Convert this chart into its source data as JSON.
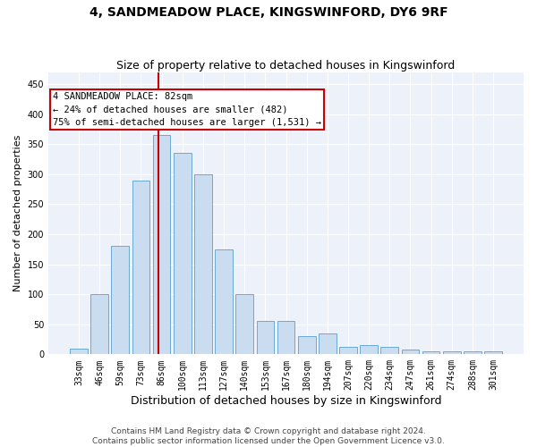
{
  "title": "4, SANDMEADOW PLACE, KINGSWINFORD, DY6 9RF",
  "subtitle": "Size of property relative to detached houses in Kingswinford",
  "xlabel": "Distribution of detached houses by size in Kingswinford",
  "ylabel": "Number of detached properties",
  "categories": [
    "33sqm",
    "46sqm",
    "59sqm",
    "73sqm",
    "86sqm",
    "100sqm",
    "113sqm",
    "127sqm",
    "140sqm",
    "153sqm",
    "167sqm",
    "180sqm",
    "194sqm",
    "207sqm",
    "220sqm",
    "234sqm",
    "247sqm",
    "261sqm",
    "274sqm",
    "288sqm",
    "301sqm"
  ],
  "values": [
    10,
    100,
    180,
    290,
    365,
    335,
    300,
    175,
    100,
    55,
    55,
    30,
    35,
    12,
    15,
    12,
    8,
    5,
    5,
    5,
    5
  ],
  "bar_color": "#c9dcf0",
  "bar_edge_color": "#6aaad4",
  "vline_color": "#cc0000",
  "annotation_text": "4 SANDMEADOW PLACE: 82sqm\n← 24% of detached houses are smaller (482)\n75% of semi-detached houses are larger (1,531) →",
  "annotation_box_color": "#ffffff",
  "annotation_box_edge": "#cc0000",
  "ylim": [
    0,
    470
  ],
  "yticks": [
    0,
    50,
    100,
    150,
    200,
    250,
    300,
    350,
    400,
    450
  ],
  "background_color": "#edf2fa",
  "grid_color": "#ffffff",
  "footer": "Contains HM Land Registry data © Crown copyright and database right 2024.\nContains public sector information licensed under the Open Government Licence v3.0.",
  "title_fontsize": 10,
  "subtitle_fontsize": 9,
  "xlabel_fontsize": 9,
  "ylabel_fontsize": 8,
  "tick_fontsize": 7,
  "annotation_fontsize": 7.5,
  "footer_fontsize": 6.5
}
